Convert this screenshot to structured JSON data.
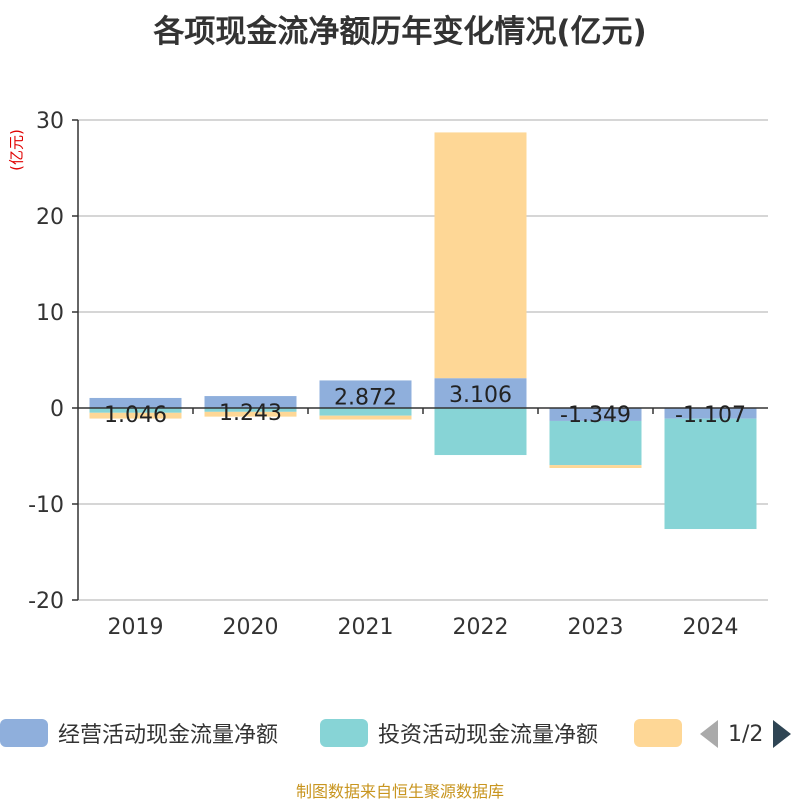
{
  "chart_data": {
    "type": "bar",
    "stacked": true,
    "title": "各项现金流净额历年变化情况(亿元)",
    "ylabel": "(亿元)",
    "xlabel": "",
    "categories": [
      "2019",
      "2020",
      "2021",
      "2022",
      "2023",
      "2024"
    ],
    "ylim": [
      -20,
      30
    ],
    "yticks": [
      30,
      20,
      10,
      0,
      -10,
      -20
    ],
    "grid": true,
    "series": [
      {
        "name": "经营活动现金流量净额",
        "color": "#8fafdc",
        "values": [
          1.046,
          1.243,
          2.872,
          3.106,
          -1.349,
          -1.107
        ]
      },
      {
        "name": "投资活动现金流量净额",
        "color": "#87d4d6",
        "values": [
          -0.5,
          -0.4,
          -0.8,
          -4.9,
          -4.6,
          -11.5
        ]
      },
      {
        "name": "",
        "color": "#fed796",
        "values": [
          -0.6,
          -0.5,
          -0.4,
          25.6,
          -0.3,
          0
        ]
      }
    ],
    "data_labels": [
      "1.046",
      "1.243",
      "2.872",
      "3.106",
      "-1.349",
      "-1.107"
    ]
  },
  "legend": {
    "items": [
      "经营活动现金流量净额",
      "投资活动现金流量净额",
      ""
    ],
    "page": "1/2"
  },
  "source": "制图数据来自恒生聚源数据库"
}
